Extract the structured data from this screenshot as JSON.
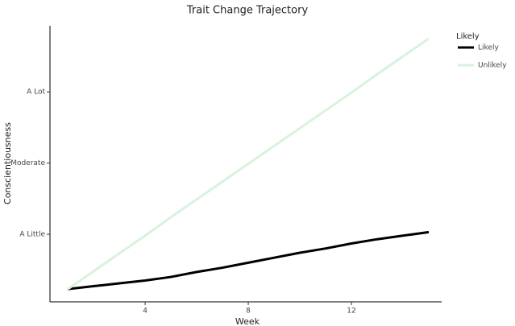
{
  "chart_data": {
    "type": "line",
    "title": "Trait Change Trajectory",
    "x_label": "Week",
    "y_label": "Conscientiousness",
    "x": [
      1,
      2,
      3,
      4,
      5,
      6,
      7,
      8,
      9,
      10,
      11,
      12,
      13,
      14,
      15
    ],
    "series": [
      {
        "name": "Likely",
        "color": "#000000",
        "values": [
          0.23,
          0.27,
          0.31,
          0.35,
          0.4,
          0.47,
          0.53,
          0.6,
          0.67,
          0.74,
          0.8,
          0.87,
          0.93,
          0.98,
          1.03
        ]
      },
      {
        "name": "Unlikely",
        "color": "#d9f2dd",
        "values": [
          0.23,
          0.48,
          0.73,
          0.98,
          1.24,
          1.49,
          1.74,
          1.99,
          2.24,
          2.49,
          2.74,
          2.99,
          3.25,
          3.5,
          3.75
        ]
      }
    ],
    "legend_title": "Likely",
    "xlim": [
      0.31,
      15.5
    ],
    "xticks": [
      4,
      8,
      12
    ],
    "ylim": [
      0.05,
      3.93
    ],
    "yticks": [
      {
        "value": 1,
        "label": "A Little"
      },
      {
        "value": 2,
        "label": "Moderate"
      },
      {
        "value": 3,
        "label": "A Lot"
      }
    ],
    "grid": false,
    "legend_position": "right"
  }
}
